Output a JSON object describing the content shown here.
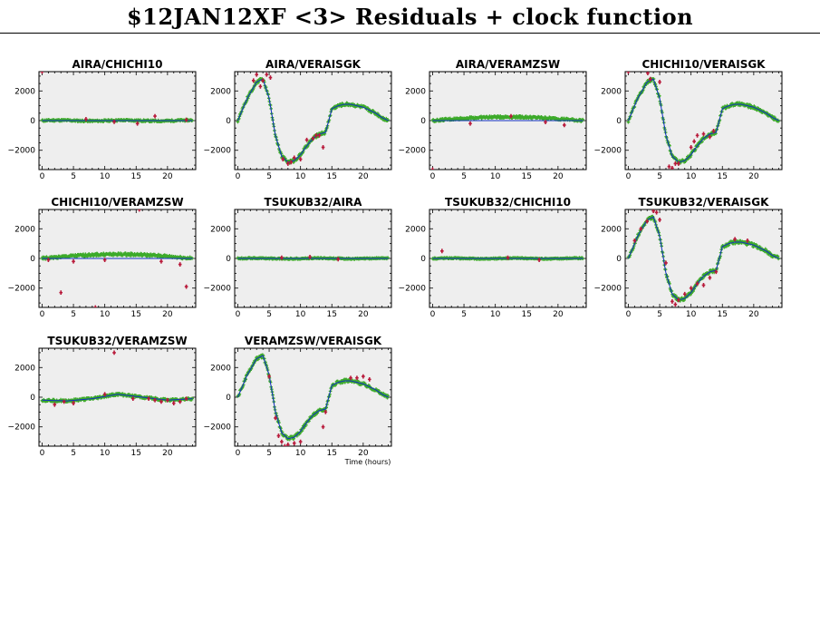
{
  "title": "$12JAN12XF <3> Residuals + clock function",
  "colors": {
    "background": "#ffffff",
    "panel": "#eeeeee",
    "residual": "#3daa2a",
    "outlier": "#b8193a",
    "clock": "#1030c0"
  },
  "chart_data": [
    {
      "type": "scatter",
      "title": "AIRA/CHICHI10",
      "xlim": [
        -0.5,
        24.5
      ],
      "ylim": [
        -3300,
        3300
      ],
      "xticks": [
        0,
        5,
        10,
        15,
        20
      ],
      "yticks": [
        -2000,
        0,
        2000
      ],
      "xlabel": "",
      "ylabel": "",
      "clock": [
        [
          0,
          0
        ],
        [
          24,
          0
        ]
      ],
      "series": [
        {
          "pattern": "flat",
          "amp": 50,
          "noise": 60
        }
      ],
      "outliers": [
        [
          7,
          100
        ],
        [
          11.5,
          -80
        ],
        [
          15.2,
          -200
        ],
        [
          18,
          300
        ],
        [
          23,
          50
        ],
        [
          0,
          3300
        ]
      ]
    },
    {
      "type": "scatter",
      "title": "AIRA/VERAISGK",
      "xlim": [
        -0.5,
        24.5
      ],
      "ylim": [
        -3300,
        3300
      ],
      "xticks": [
        0,
        5,
        10,
        15,
        20
      ],
      "yticks": [
        -2000,
        0,
        2000
      ],
      "xlabel": "",
      "ylabel": "",
      "clock": [
        [
          0,
          0
        ],
        [
          1.5,
          1500
        ],
        [
          3,
          2600
        ],
        [
          4,
          2800
        ],
        [
          5,
          1500
        ],
        [
          6,
          -1000
        ],
        [
          7,
          -2400
        ],
        [
          8,
          -2800
        ],
        [
          9,
          -2700
        ],
        [
          10,
          -2300
        ],
        [
          11,
          -1700
        ],
        [
          12,
          -1200
        ],
        [
          13,
          -900
        ],
        [
          14,
          -800
        ],
        [
          15,
          800
        ],
        [
          16,
          1000
        ],
        [
          17,
          1100
        ],
        [
          18,
          1100
        ],
        [
          19,
          1000
        ],
        [
          20,
          900
        ],
        [
          21,
          700
        ],
        [
          22,
          500
        ],
        [
          23,
          200
        ],
        [
          24,
          0
        ]
      ],
      "series": [
        {
          "pattern": "clock",
          "noise": 110
        }
      ],
      "outliers": [
        [
          2.5,
          2700
        ],
        [
          3,
          3100
        ],
        [
          3.6,
          2300
        ],
        [
          4,
          2700
        ],
        [
          4.6,
          3100
        ],
        [
          5.2,
          2900
        ],
        [
          7.2,
          -2600
        ],
        [
          8,
          -2900
        ],
        [
          8.5,
          -2800
        ],
        [
          9,
          -2500
        ],
        [
          10,
          -2600
        ],
        [
          11,
          -1300
        ],
        [
          12,
          -1200
        ],
        [
          12.5,
          -1000
        ],
        [
          13,
          -1000
        ],
        [
          13.6,
          -1800
        ]
      ]
    },
    {
      "type": "scatter",
      "title": "AIRA/VERAMZSW",
      "xlim": [
        -0.5,
        24.5
      ],
      "ylim": [
        -3300,
        3300
      ],
      "xticks": [
        0,
        5,
        10,
        15,
        20
      ],
      "yticks": [
        -2000,
        0,
        2000
      ],
      "xlabel": "",
      "ylabel": "",
      "clock": [
        [
          0,
          0
        ],
        [
          24,
          0
        ]
      ],
      "series": [
        {
          "pattern": "hump",
          "amp": 250,
          "noise": 80
        }
      ],
      "outliers": [
        [
          6,
          -200
        ],
        [
          12.5,
          300
        ],
        [
          18,
          -100
        ],
        [
          21,
          -300
        ],
        [
          0,
          -3300
        ]
      ]
    },
    {
      "type": "scatter",
      "title": "CHICHI10/VERAISGK",
      "xlim": [
        -0.5,
        24.5
      ],
      "ylim": [
        -3300,
        3300
      ],
      "xticks": [
        0,
        5,
        10,
        15,
        20
      ],
      "yticks": [
        -2000,
        0,
        2000
      ],
      "xlabel": "",
      "ylabel": "",
      "clock": [
        [
          0,
          0
        ],
        [
          1.5,
          1500
        ],
        [
          3,
          2600
        ],
        [
          4,
          2800
        ],
        [
          5,
          1500
        ],
        [
          6,
          -1000
        ],
        [
          7,
          -2400
        ],
        [
          8,
          -2800
        ],
        [
          9,
          -2700
        ],
        [
          10,
          -2300
        ],
        [
          11,
          -1700
        ],
        [
          12,
          -1200
        ],
        [
          13,
          -900
        ],
        [
          14,
          -800
        ],
        [
          15,
          800
        ],
        [
          16,
          1000
        ],
        [
          17,
          1100
        ],
        [
          18,
          1100
        ],
        [
          19,
          1000
        ],
        [
          20,
          900
        ],
        [
          21,
          700
        ],
        [
          22,
          500
        ],
        [
          23,
          200
        ],
        [
          24,
          0
        ]
      ],
      "series": [
        {
          "pattern": "clock",
          "noise": 110
        }
      ],
      "outliers": [
        [
          0,
          3300
        ],
        [
          3.1,
          3200
        ],
        [
          3.5,
          2800
        ],
        [
          5,
          2600
        ],
        [
          6.5,
          -3100
        ],
        [
          7,
          -3200
        ],
        [
          7.5,
          -2900
        ],
        [
          8,
          -2900
        ],
        [
          10,
          -1800
        ],
        [
          10.5,
          -1400
        ],
        [
          11,
          -1000
        ],
        [
          12,
          -900
        ],
        [
          13,
          -1100
        ],
        [
          13.6,
          -700
        ]
      ]
    },
    {
      "type": "scatter",
      "title": "CHICHI10/VERAMZSW",
      "xlim": [
        -0.5,
        24.5
      ],
      "ylim": [
        -3300,
        3300
      ],
      "xticks": [
        0,
        5,
        10,
        15,
        20
      ],
      "yticks": [
        -2000,
        0,
        2000
      ],
      "xlabel": "",
      "ylabel": "",
      "clock": [
        [
          0,
          0
        ],
        [
          24,
          0
        ]
      ],
      "series": [
        {
          "pattern": "hump",
          "amp": 280,
          "noise": 90
        }
      ],
      "outliers": [
        [
          1,
          -100
        ],
        [
          3,
          -2300
        ],
        [
          5,
          -200
        ],
        [
          10,
          -100
        ],
        [
          15.5,
          3300
        ],
        [
          19,
          -200
        ],
        [
          23,
          -1900
        ],
        [
          8.5,
          -3300
        ],
        [
          22,
          -400
        ]
      ]
    },
    {
      "type": "scatter",
      "title": "TSUKUB32/AIRA",
      "xlim": [
        -0.5,
        24.5
      ],
      "ylim": [
        -3300,
        3300
      ],
      "xticks": [
        0,
        5,
        10,
        15,
        20
      ],
      "yticks": [
        -2000,
        0,
        2000
      ],
      "xlabel": "",
      "ylabel": "",
      "clock": [
        [
          0,
          0
        ],
        [
          24,
          0
        ]
      ],
      "series": [
        {
          "pattern": "flat",
          "amp": 40,
          "noise": 40
        }
      ],
      "outliers": [
        [
          7,
          50
        ],
        [
          11.5,
          100
        ],
        [
          16,
          -50
        ]
      ]
    },
    {
      "type": "scatter",
      "title": "TSUKUB32/CHICHI10",
      "xlim": [
        -0.5,
        24.5
      ],
      "ylim": [
        -3300,
        3300
      ],
      "xticks": [
        0,
        5,
        10,
        15,
        20
      ],
      "yticks": [
        -2000,
        0,
        2000
      ],
      "xlabel": "",
      "ylabel": "",
      "clock": [
        [
          0,
          0
        ],
        [
          24,
          0
        ]
      ],
      "series": [
        {
          "pattern": "flat",
          "amp": 40,
          "noise": 40
        }
      ],
      "outliers": [
        [
          1.5,
          500
        ],
        [
          12,
          50
        ],
        [
          17,
          -100
        ]
      ]
    },
    {
      "type": "scatter",
      "title": "TSUKUB32/VERAISGK",
      "xlim": [
        -0.5,
        24.5
      ],
      "ylim": [
        -3300,
        3300
      ],
      "xticks": [
        0,
        5,
        10,
        15,
        20
      ],
      "yticks": [
        -2000,
        0,
        2000
      ],
      "xlabel": "",
      "ylabel": "",
      "clock": [
        [
          0,
          0
        ],
        [
          1.5,
          1500
        ],
        [
          3,
          2600
        ],
        [
          4,
          2800
        ],
        [
          5,
          1500
        ],
        [
          6,
          -1000
        ],
        [
          7,
          -2400
        ],
        [
          8,
          -2800
        ],
        [
          9,
          -2700
        ],
        [
          10,
          -2300
        ],
        [
          11,
          -1700
        ],
        [
          12,
          -1200
        ],
        [
          13,
          -900
        ],
        [
          14,
          -800
        ],
        [
          15,
          800
        ],
        [
          16,
          1000
        ],
        [
          17,
          1100
        ],
        [
          18,
          1100
        ],
        [
          19,
          1000
        ],
        [
          20,
          900
        ],
        [
          21,
          700
        ],
        [
          22,
          500
        ],
        [
          23,
          200
        ],
        [
          24,
          0
        ]
      ],
      "series": [
        {
          "pattern": "clock",
          "noise": 120
        }
      ],
      "outliers": [
        [
          1,
          1200
        ],
        [
          2,
          2000
        ],
        [
          3,
          2500
        ],
        [
          4,
          3200
        ],
        [
          4.5,
          3100
        ],
        [
          5,
          2600
        ],
        [
          6,
          -300
        ],
        [
          7,
          -2900
        ],
        [
          7.5,
          -3100
        ],
        [
          8,
          -2800
        ],
        [
          9,
          -2400
        ],
        [
          10,
          -2000
        ],
        [
          11,
          -1700
        ],
        [
          12,
          -1800
        ],
        [
          13,
          -1300
        ],
        [
          14,
          -900
        ],
        [
          17,
          1300
        ],
        [
          19,
          1200
        ]
      ]
    },
    {
      "type": "scatter",
      "title": "TSUKUB32/VERAMZSW",
      "xlim": [
        -0.5,
        24.5
      ],
      "ylim": [
        -3300,
        3300
      ],
      "xticks": [
        0,
        5,
        10,
        15,
        20
      ],
      "yticks": [
        -2000,
        0,
        2000
      ],
      "xlabel": "",
      "ylabel": "",
      "clock": [
        [
          0,
          -200
        ],
        [
          4,
          -250
        ],
        [
          8,
          -100
        ],
        [
          12,
          200
        ],
        [
          16,
          0
        ],
        [
          20,
          -200
        ],
        [
          24,
          -100
        ]
      ],
      "series": [
        {
          "pattern": "wave",
          "amp": 200,
          "noise": 80
        }
      ],
      "outliers": [
        [
          2,
          -500
        ],
        [
          3.5,
          -300
        ],
        [
          5,
          -400
        ],
        [
          10,
          200
        ],
        [
          11.5,
          3000
        ],
        [
          14.5,
          -100
        ],
        [
          17,
          -100
        ],
        [
          18,
          -200
        ],
        [
          19,
          -300
        ],
        [
          20,
          -200
        ],
        [
          21,
          -400
        ],
        [
          22,
          -300
        ],
        [
          23,
          -100
        ]
      ]
    },
    {
      "type": "scatter",
      "title": "VERAMZSW/VERAISGK",
      "xlim": [
        -0.5,
        24.5
      ],
      "ylim": [
        -3300,
        3300
      ],
      "xticks": [
        0,
        5,
        10,
        15,
        20
      ],
      "yticks": [
        -2000,
        0,
        2000
      ],
      "xlabel": "Time (hours)",
      "ylabel": "",
      "clock": [
        [
          0,
          0
        ],
        [
          1.5,
          1500
        ],
        [
          3,
          2600
        ],
        [
          4,
          2800
        ],
        [
          5,
          1500
        ],
        [
          6,
          -1000
        ],
        [
          7,
          -2400
        ],
        [
          8,
          -2800
        ],
        [
          9,
          -2700
        ],
        [
          10,
          -2300
        ],
        [
          11,
          -1700
        ],
        [
          12,
          -1200
        ],
        [
          13,
          -900
        ],
        [
          14,
          -800
        ],
        [
          15,
          800
        ],
        [
          16,
          1000
        ],
        [
          17,
          1100
        ],
        [
          18,
          1100
        ],
        [
          19,
          1000
        ],
        [
          20,
          900
        ],
        [
          21,
          700
        ],
        [
          22,
          500
        ],
        [
          23,
          200
        ],
        [
          24,
          0
        ]
      ],
      "series": [
        {
          "pattern": "clock",
          "noise": 110
        }
      ],
      "outliers": [
        [
          5,
          1400
        ],
        [
          6,
          -1400
        ],
        [
          6.5,
          -2600
        ],
        [
          7,
          -3000
        ],
        [
          7.5,
          -3300
        ],
        [
          8,
          -3200
        ],
        [
          9,
          -3100
        ],
        [
          10,
          -3000
        ],
        [
          13.6,
          -2000
        ],
        [
          14,
          -1000
        ],
        [
          18,
          1300
        ],
        [
          19,
          1300
        ],
        [
          20,
          1400
        ],
        [
          21,
          1200
        ]
      ]
    }
  ]
}
